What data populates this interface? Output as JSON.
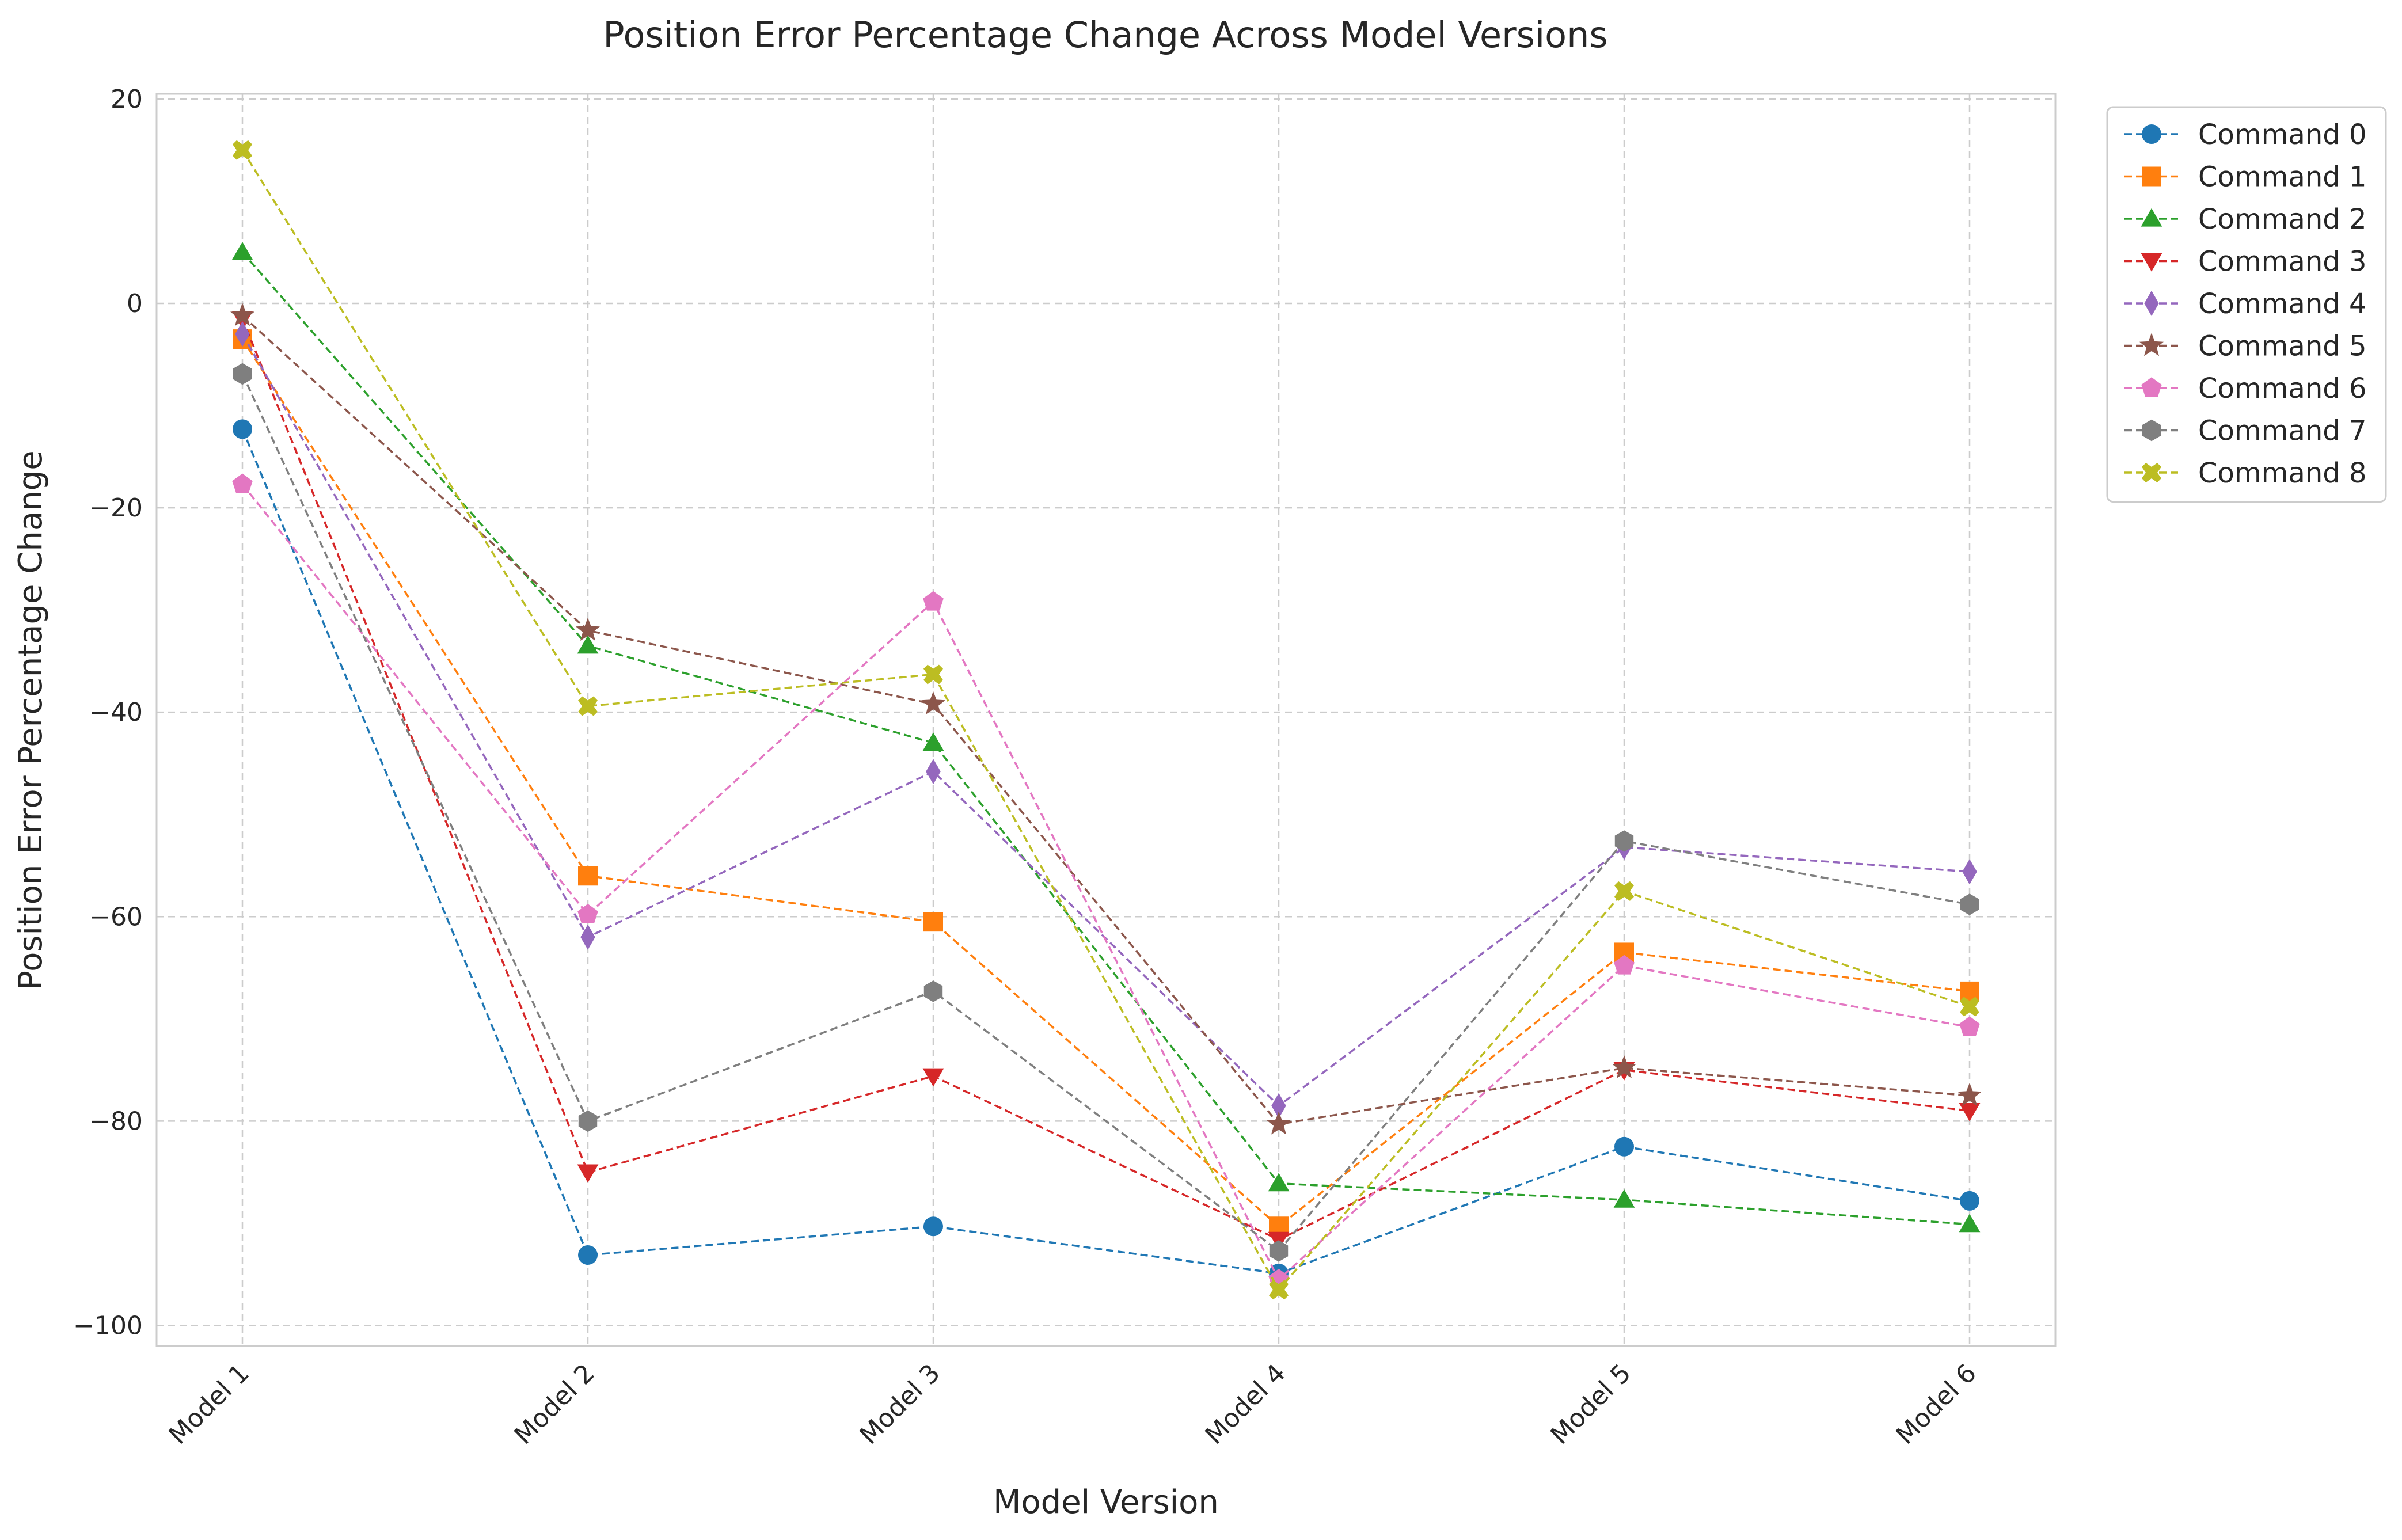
{
  "chart_data": {
    "type": "line",
    "title": "Position Error Percentage Change Across Model Versions",
    "xlabel": "Model Version",
    "ylabel": "Position Error Percentage Change",
    "categories": [
      "Model 1",
      "Model 2",
      "Model 3",
      "Model 4",
      "Model 5",
      "Model 6"
    ],
    "ylim": [
      -102,
      20.5
    ],
    "yticks": [
      20,
      0,
      -20,
      -40,
      -60,
      -80,
      -100
    ],
    "ytick_labels": [
      "20",
      "0",
      "−20",
      "−40",
      "−60",
      "−80",
      "−100"
    ],
    "grid": true,
    "line_style": "dashed",
    "legend_placement": "outside-top-right",
    "series": [
      {
        "name": "Command 0",
        "color": "#1f77b4",
        "marker": "circle",
        "values": [
          -12.3,
          -93.1,
          -90.3,
          -94.9,
          -82.5,
          -87.8
        ]
      },
      {
        "name": "Command 1",
        "color": "#ff7f0e",
        "marker": "square",
        "values": [
          -3.5,
          -56.0,
          -60.5,
          -90.3,
          -63.5,
          -67.3
        ]
      },
      {
        "name": "Command 2",
        "color": "#2ca02c",
        "marker": "triangle-up",
        "values": [
          5.0,
          -33.5,
          -43.0,
          -86.1,
          -87.7,
          -90.1
        ]
      },
      {
        "name": "Command 3",
        "color": "#d62728",
        "marker": "triangle-down",
        "values": [
          -1.5,
          -85.0,
          -75.6,
          -91.6,
          -75.0,
          -79.0
        ]
      },
      {
        "name": "Command 4",
        "color": "#9467bd",
        "marker": "thin-diamond",
        "values": [
          -3.0,
          -62.0,
          -45.8,
          -78.5,
          -53.2,
          -55.6
        ]
      },
      {
        "name": "Command 5",
        "color": "#8c564b",
        "marker": "star",
        "values": [
          -1.2,
          -32.0,
          -39.2,
          -80.3,
          -74.8,
          -77.5
        ]
      },
      {
        "name": "Command 6",
        "color": "#e377c2",
        "marker": "pentagon",
        "values": [
          -17.7,
          -59.8,
          -29.2,
          -95.5,
          -64.8,
          -70.8
        ]
      },
      {
        "name": "Command 7",
        "color": "#7f7f7f",
        "marker": "hexagon",
        "values": [
          -6.9,
          -80.0,
          -67.3,
          -92.7,
          -52.6,
          -58.8
        ]
      },
      {
        "name": "Command 8",
        "color": "#bcbd22",
        "marker": "x-filled",
        "values": [
          15.0,
          -39.4,
          -36.3,
          -96.5,
          -57.5,
          -68.8
        ]
      }
    ]
  }
}
